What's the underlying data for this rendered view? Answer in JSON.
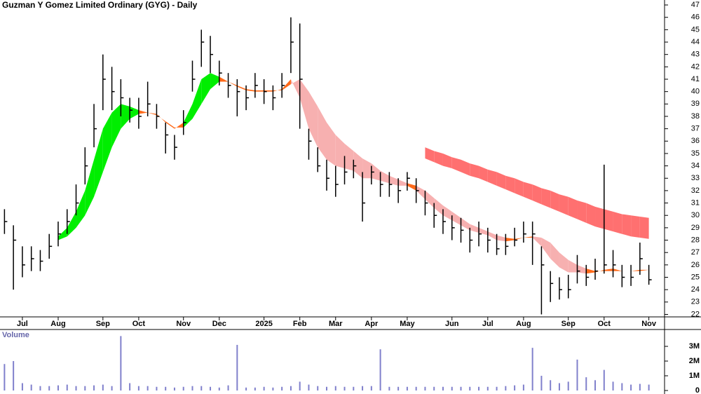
{
  "chart_data": {
    "type": "ohlc",
    "title": "Guzman Y Gomez Limited Ordinary (GYG) - Daily",
    "categories": [
      null,
      null,
      "Jul",
      null,
      null,
      null,
      "Aug",
      null,
      null,
      null,
      null,
      "Sep",
      null,
      null,
      null,
      "Oct",
      null,
      null,
      null,
      null,
      "Nov",
      null,
      null,
      null,
      "Dec",
      null,
      null,
      null,
      null,
      "2025",
      null,
      null,
      null,
      "Feb",
      null,
      null,
      null,
      "Mar",
      null,
      null,
      null,
      "Apr",
      null,
      null,
      null,
      "May",
      null,
      null,
      null,
      null,
      "Jun",
      null,
      null,
      null,
      "Jul",
      null,
      null,
      null,
      "Aug",
      null,
      null,
      null,
      null,
      "Sep",
      null,
      null,
      null,
      "Oct",
      null,
      null,
      null,
      null,
      "Nov"
    ],
    "high": [
      30.5,
      29.2,
      27.5,
      27.5,
      27.2,
      28.5,
      29.5,
      30.5,
      32.5,
      35.5,
      39,
      43,
      42,
      41,
      39.5,
      39.5,
      40.8,
      39,
      37.5,
      36.5,
      38.5,
      42.5,
      45,
      44.5,
      42.5,
      41.5,
      41,
      40.5,
      41.5,
      41,
      40.5,
      41.5,
      46,
      45.5,
      37,
      35.5,
      34.5,
      34,
      34.8,
      34.5,
      33.5,
      34,
      33.5,
      33.5,
      33,
      33.5,
      33,
      32,
      31,
      30.5,
      30,
      29.8,
      29,
      29.5,
      29,
      28.5,
      28.5,
      29,
      29.5,
      29.5,
      27.5,
      25.5,
      25,
      25.2,
      26.8,
      26,
      26.5,
      34.1,
      27.2,
      26,
      26,
      27.8,
      26
    ],
    "low": [
      28.5,
      24,
      25,
      25.5,
      25.5,
      26.5,
      27.5,
      28.5,
      30,
      32.5,
      35.5,
      38.5,
      38.5,
      38,
      37.5,
      37,
      38,
      37,
      35,
      34.5,
      36.5,
      40,
      42,
      41.5,
      40.5,
      39.5,
      38,
      38.5,
      39.5,
      39,
      38.5,
      39.5,
      41.5,
      37,
      34.5,
      33.5,
      32,
      31.5,
      32.5,
      33,
      29.5,
      32.5,
      31.5,
      31.5,
      31,
      32,
      31,
      30,
      29,
      28.5,
      28,
      27.8,
      27,
      27.5,
      27,
      26.8,
      26.8,
      27.5,
      27.8,
      26,
      22,
      23,
      23.2,
      23.3,
      24.5,
      24.3,
      24.8,
      25.3,
      25,
      24.2,
      24.3,
      25.2,
      24.4
    ],
    "close": [
      29.5,
      28,
      26,
      26.5,
      26.3,
      27.5,
      28.5,
      29.5,
      31,
      34,
      37,
      41,
      40,
      39.5,
      38.5,
      38,
      39,
      38,
      36.5,
      35.5,
      37.5,
      41,
      44,
      43,
      41.5,
      40.5,
      40,
      39.5,
      40.5,
      40,
      39.5,
      40.5,
      44,
      41,
      36,
      34,
      33,
      32.5,
      33.5,
      34,
      31,
      33.5,
      32.5,
      32.5,
      32,
      33,
      32,
      31,
      30,
      29.5,
      29,
      28.8,
      28,
      28.5,
      28,
      27.3,
      27.5,
      28,
      28.5,
      28.5,
      26,
      24.5,
      24,
      24,
      25.5,
      25,
      25.5,
      26,
      26,
      25,
      25,
      26.5,
      24.8
    ],
    "ma_fast": [
      null,
      null,
      null,
      null,
      null,
      null,
      28.3,
      29,
      30.3,
      32,
      34.5,
      37,
      38.3,
      39,
      38.8,
      38.5,
      38.3,
      38.2,
      37.5,
      37,
      37.5,
      39,
      41,
      41.5,
      41.2,
      40.8,
      40.4,
      40.1,
      40,
      40,
      40,
      40.2,
      41,
      39.5,
      37,
      35.5,
      34.5,
      34,
      33.8,
      33.6,
      33,
      33,
      32.8,
      32.6,
      32.4,
      32.4,
      32,
      31.3,
      30.6,
      30,
      29.6,
      29.2,
      28.8,
      28.6,
      28.4,
      28,
      27.9,
      28,
      28.2,
      28.2,
      27.5,
      26.5,
      25.8,
      25.4,
      25.4,
      25.3,
      25.4,
      25.6,
      25.7,
      25.5,
      25.5,
      25.6,
      25.6
    ],
    "ma_slow": [
      null,
      null,
      null,
      null,
      null,
      null,
      28,
      28.3,
      29,
      30,
      31.5,
      33.5,
      35.5,
      37,
      37.8,
      38.2,
      38.3,
      38.1,
      37.6,
      37.1,
      37.1,
      37.8,
      39,
      40.2,
      40.8,
      40.8,
      40.5,
      40.2,
      40.1,
      40.1,
      40.1,
      40.1,
      40.6,
      41,
      40,
      38.8,
      37.5,
      36.5,
      35.8,
      35.2,
      34.6,
      34.2,
      33.6,
      33.2,
      32.9,
      32.6,
      32.4,
      32,
      31.4,
      30.8,
      30.3,
      29.8,
      29.3,
      29,
      28.7,
      28.4,
      28.2,
      28.1,
      28.2,
      28.3,
      28.2,
      27.8,
      27,
      26.4,
      26,
      25.7,
      25.5,
      25.5,
      25.5,
      25.5,
      25.5,
      25.5,
      25.6
    ],
    "band_upper": [
      null,
      null,
      null,
      null,
      null,
      null,
      null,
      null,
      null,
      null,
      null,
      null,
      null,
      null,
      null,
      null,
      null,
      null,
      null,
      null,
      null,
      null,
      null,
      null,
      null,
      null,
      null,
      null,
      null,
      null,
      null,
      null,
      null,
      null,
      null,
      null,
      null,
      null,
      null,
      null,
      null,
      null,
      null,
      null,
      null,
      null,
      null,
      35.5,
      35.2,
      35.0,
      34.7,
      34.5,
      34.2,
      34.0,
      33.7,
      33.5,
      33.2,
      33.0,
      32.7,
      32.5,
      32.2,
      32.0,
      31.7,
      31.5,
      31.2,
      31.0,
      30.7,
      30.5,
      30.3,
      30.1,
      30.0,
      29.9,
      29.8
    ],
    "band_lower": [
      null,
      null,
      null,
      null,
      null,
      null,
      null,
      null,
      null,
      null,
      null,
      null,
      null,
      null,
      null,
      null,
      null,
      null,
      null,
      null,
      null,
      null,
      null,
      null,
      null,
      null,
      null,
      null,
      null,
      null,
      null,
      null,
      null,
      null,
      null,
      null,
      null,
      null,
      null,
      null,
      null,
      null,
      null,
      null,
      null,
      null,
      null,
      34.6,
      34.3,
      34.0,
      33.8,
      33.5,
      33.2,
      33.0,
      32.7,
      32.4,
      32.1,
      31.8,
      31.5,
      31.2,
      30.9,
      30.6,
      30.3,
      30.0,
      29.7,
      29.4,
      29.1,
      28.9,
      28.7,
      28.5,
      28.3,
      28.2,
      28.1
    ],
    "colors": {
      "bar": "#000000",
      "up": "#00ee00",
      "down": "#f7b0b0",
      "flat": "#ff6a1a",
      "band": "#ff7070",
      "volume": "#8080cc"
    },
    "ylim": [
      21.8,
      47.4
    ],
    "yticks": [
      22,
      23,
      24,
      25,
      26,
      27,
      28,
      29,
      30,
      31,
      32,
      33,
      34,
      35,
      36,
      37,
      38,
      39,
      40,
      41,
      42,
      43,
      44,
      45,
      46,
      47
    ],
    "volume_label": "Volume",
    "volume": [
      1800000,
      2000000,
      500000,
      400000,
      300000,
      300000,
      350000,
      400000,
      300000,
      300000,
      350000,
      400000,
      300000,
      3700000,
      500000,
      300000,
      300000,
      250000,
      250000,
      200000,
      250000,
      300000,
      300000,
      250000,
      200000,
      350000,
      3100000,
      200000,
      200000,
      250000,
      200000,
      250000,
      300000,
      600000,
      400000,
      300000,
      250000,
      300000,
      250000,
      250000,
      300000,
      300000,
      2800000,
      250000,
      250000,
      250000,
      250000,
      250000,
      250000,
      250000,
      250000,
      250000,
      250000,
      250000,
      250000,
      250000,
      300000,
      350000,
      400000,
      2900000,
      1000000,
      700000,
      500000,
      600000,
      2100000,
      900000,
      700000,
      1400000,
      600000,
      500000,
      400000,
      450000,
      400000
    ],
    "vlim": [
      0,
      4050000
    ],
    "vticks": [
      {
        "value": 0,
        "label": "0"
      },
      {
        "value": 1000000,
        "label": "1M"
      },
      {
        "value": 2000000,
        "label": "2M"
      },
      {
        "value": 3000000,
        "label": "3M"
      }
    ]
  }
}
